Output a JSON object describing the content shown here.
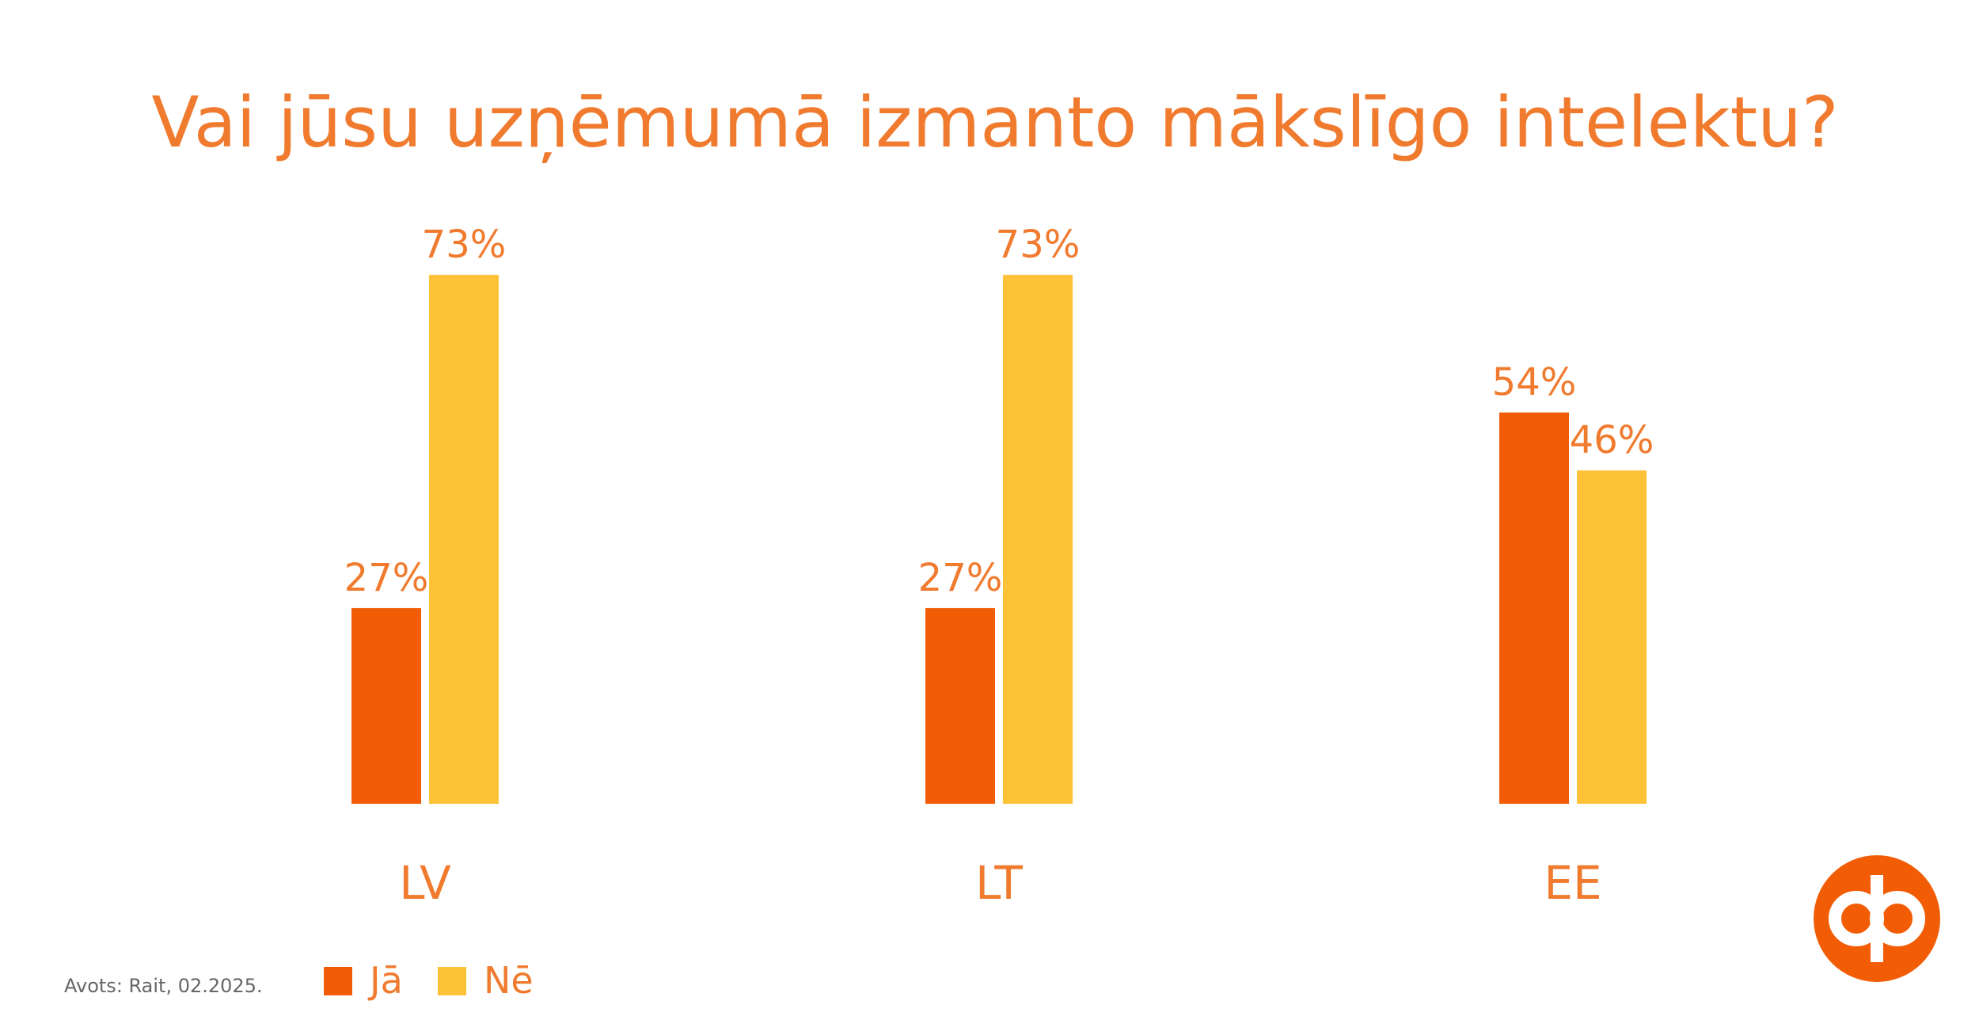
{
  "chart_data": {
    "type": "bar",
    "title": "Vai jūsu uzņēmumā izmanto mākslīgo intelektu?",
    "categories": [
      "LV",
      "LT",
      "EE"
    ],
    "series": [
      {
        "name": "Jā",
        "color": "#f25c05",
        "values": [
          27,
          27,
          54
        ],
        "value_labels": [
          "27%",
          "27%",
          "54%"
        ]
      },
      {
        "name": "Nē",
        "color": "#fdc236",
        "values": [
          73,
          73,
          46
        ],
        "value_labels": [
          "73%",
          "73%",
          "46%"
        ]
      }
    ],
    "ylim": [
      0,
      100
    ],
    "source": "Avots: Rait, 02.2025."
  }
}
